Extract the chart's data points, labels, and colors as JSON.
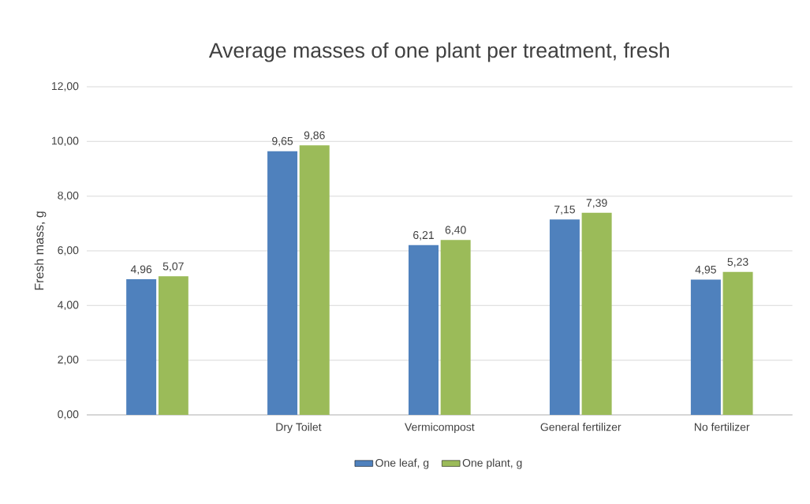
{
  "chart_data": {
    "type": "bar",
    "title": "Average masses of one plant per treatment, fresh",
    "ylabel": "Fresh mass, g",
    "categories": [
      null,
      "Dry Toilet",
      "Vermicompost",
      "General fertilizer",
      "No fertilizer"
    ],
    "series": [
      {
        "name": "One leaf, g",
        "color": "#4f81bd",
        "values": [
          4.96,
          9.65,
          6.21,
          7.15,
          4.95
        ],
        "value_labels": [
          "4,96",
          "9,65",
          "6,21",
          "7,15",
          "4,95"
        ]
      },
      {
        "name": "One plant, g",
        "color": "#9bbb59",
        "values": [
          5.07,
          9.86,
          6.4,
          7.39,
          5.23
        ],
        "value_labels": [
          "5,07",
          "9,86",
          "6,40",
          "7,39",
          "5,23"
        ]
      }
    ],
    "ylim": [
      0,
      12
    ],
    "yticks": [
      {
        "value": 0,
        "label": "0,00"
      },
      {
        "value": 2,
        "label": "2,00"
      },
      {
        "value": 4,
        "label": "4,00"
      },
      {
        "value": 6,
        "label": "6,00"
      },
      {
        "value": 8,
        "label": "8,00"
      },
      {
        "value": 10,
        "label": "10,00"
      },
      {
        "value": 12,
        "label": "12,00"
      }
    ],
    "grid": "y",
    "legend": "bottom"
  }
}
